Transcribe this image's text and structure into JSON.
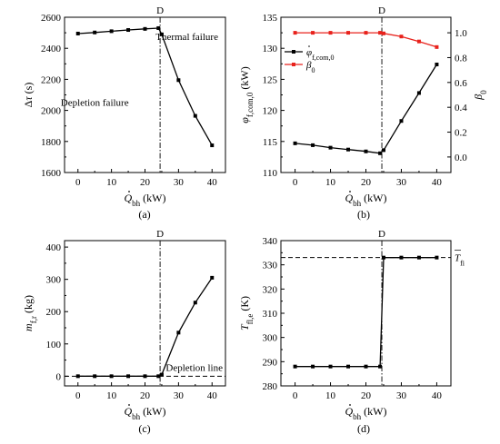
{
  "chart_data": [
    {
      "type": "line",
      "caption": "(a)",
      "xlabel": "Q̇bh (kW)",
      "ylabel": "Δτ (s)",
      "xlim": [
        -4,
        44
      ],
      "ylim": [
        1600,
        2600
      ],
      "xticks": [
        0,
        10,
        20,
        30,
        40
      ],
      "yticks": [
        1600,
        1800,
        2000,
        2200,
        2400,
        2600
      ],
      "vline": {
        "x": 24.5,
        "label": "D"
      },
      "annotations": [
        {
          "text": "Thermal failure",
          "x": 32.5,
          "y": 2455
        },
        {
          "text": "Depletion failure",
          "x": 5,
          "y": 2030
        }
      ],
      "series": [
        {
          "color": "#000000",
          "x": [
            0,
            5,
            10,
            15,
            20,
            24,
            25,
            30,
            35,
            40
          ],
          "y": [
            2495,
            2502,
            2510,
            2518,
            2525,
            2530,
            2490,
            2195,
            1965,
            1775
          ]
        }
      ]
    },
    {
      "type": "line",
      "caption": "(b)",
      "xlabel": "Q̇bh (kW)",
      "ylabel": "φ̇f,com,0 (kW)",
      "ylabel_right": "β0",
      "xlim": [
        -4,
        44
      ],
      "ylim": [
        110,
        135
      ],
      "ylim_right": [
        -0.125,
        1.125
      ],
      "xticks": [
        0,
        10,
        20,
        30,
        40
      ],
      "yticks": [
        110,
        115,
        120,
        125,
        130,
        135
      ],
      "yticks_right": [
        0.0,
        0.2,
        0.4,
        0.6,
        0.8,
        1.0
      ],
      "vline": {
        "x": 24.5,
        "label": "D"
      },
      "legend_position": "top-left",
      "legend": [
        "φ̇f,com,0",
        "β0"
      ],
      "series": [
        {
          "name": "φ̇f,com,0",
          "color": "#000000",
          "axis": "left",
          "x": [
            0,
            5,
            10,
            15,
            20,
            24,
            25,
            30,
            35,
            40
          ],
          "y": [
            114.7,
            114.4,
            114.0,
            113.7,
            113.4,
            113.1,
            113.6,
            118.3,
            122.8,
            127.4
          ]
        },
        {
          "name": "β0",
          "color": "#e8221c",
          "axis": "right",
          "x": [
            0,
            5,
            10,
            15,
            20,
            24,
            25,
            30,
            35,
            40
          ],
          "y": [
            1.0,
            1.0,
            1.0,
            1.0,
            1.0,
            1.0,
            0.995,
            0.97,
            0.93,
            0.885
          ]
        }
      ]
    },
    {
      "type": "line",
      "caption": "(c)",
      "xlabel": "Q̇bh (kW)",
      "ylabel": "mf,r (kg)",
      "xlim": [
        -4,
        44
      ],
      "ylim": [
        -30,
        420
      ],
      "xticks": [
        0,
        10,
        20,
        30,
        40
      ],
      "yticks": [
        0,
        100,
        200,
        300,
        400
      ],
      "vline": {
        "x": 24.5,
        "label": "D"
      },
      "hline": {
        "y": 0,
        "label": "Depletion line"
      },
      "series": [
        {
          "color": "#000000",
          "x": [
            0,
            5,
            10,
            15,
            20,
            24,
            25,
            30,
            35,
            40
          ],
          "y": [
            0,
            0,
            0,
            0,
            0,
            0,
            5,
            135,
            228,
            305
          ]
        }
      ]
    },
    {
      "type": "line",
      "caption": "(d)",
      "xlabel": "Q̇bh (kW)",
      "ylabel": "Tfl,e (K)",
      "xlim": [
        -4,
        44
      ],
      "ylim": [
        280,
        340
      ],
      "xticks": [
        0,
        10,
        20,
        30,
        40
      ],
      "yticks": [
        280,
        290,
        300,
        310,
        320,
        330,
        340
      ],
      "vline": {
        "x": 24.5,
        "label": "D"
      },
      "hline": {
        "y": 333,
        "label": "T̄fi"
      },
      "series": [
        {
          "color": "#000000",
          "x": [
            0,
            5,
            10,
            15,
            20,
            24,
            25,
            30,
            35,
            40
          ],
          "y": [
            288,
            288,
            288,
            288,
            288,
            288,
            333,
            333,
            333,
            333
          ]
        }
      ]
    }
  ]
}
